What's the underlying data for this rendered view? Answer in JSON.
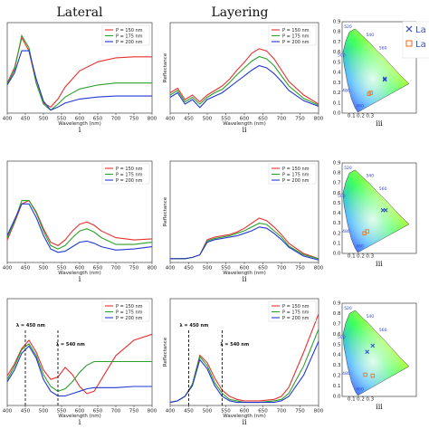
{
  "column_titles": {
    "lateral": "Lateral",
    "layering": "Layering"
  },
  "legend_labels": [
    "P = 150 nm",
    "P = 175 nm",
    "P = 200 nm"
  ],
  "series_colors": [
    "#e8312f",
    "#2ca02c",
    "#2238d0"
  ],
  "xlabel": "Wavelength (nm)",
  "ylabel_reflectance": "Reflectance",
  "xticks": [
    "400",
    "450",
    "500",
    "550",
    "600",
    "650",
    "700",
    "750",
    "800"
  ],
  "cie_legend": [
    "La",
    "La"
  ],
  "cie_wavelength_ticks": [
    "520",
    "540",
    "560",
    "500",
    "480",
    "460"
  ],
  "cie_axis_ticks": [
    "0.9",
    "0.8",
    "0.7",
    "0.6",
    "0.5",
    "0.4",
    "0.3",
    "0.2",
    "0.1",
    "0.0",
    "0.1",
    "0.2",
    "0.3"
  ],
  "rows": [
    {
      "left_label": "i",
      "mid_label": "ii",
      "right_label": "iii",
      "annotations": []
    },
    {
      "left_label": "i",
      "mid_label": "ii",
      "right_label": "iii",
      "annotations": []
    },
    {
      "left_label": "i",
      "mid_label": "ii",
      "right_label": "iii",
      "annotations": [
        {
          "text": "λ = 450 nm",
          "x": 450
        },
        {
          "text": "λ = 540 nm",
          "x": 540
        }
      ]
    }
  ],
  "chart_data": [
    {
      "type": "line",
      "panel": "row1-lateral",
      "x": [
        400,
        420,
        440,
        460,
        480,
        500,
        520,
        540,
        560,
        600,
        650,
        700,
        750,
        800
      ],
      "series": [
        {
          "name": "P = 150 nm",
          "values": [
            0.3,
            0.45,
            0.75,
            0.62,
            0.3,
            0.1,
            0.06,
            0.14,
            0.26,
            0.42,
            0.51,
            0.55,
            0.56,
            0.56
          ]
        },
        {
          "name": "P = 175 nm",
          "values": [
            0.29,
            0.43,
            0.77,
            0.65,
            0.3,
            0.09,
            0.03,
            0.09,
            0.16,
            0.24,
            0.28,
            0.3,
            0.3,
            0.3
          ]
        },
        {
          "name": "P = 200 nm",
          "values": [
            0.28,
            0.4,
            0.62,
            0.62,
            0.34,
            0.12,
            0.03,
            0.06,
            0.1,
            0.14,
            0.16,
            0.17,
            0.17,
            0.17
          ]
        }
      ],
      "xlim": [
        400,
        800
      ],
      "ylim": [
        0,
        0.9
      ]
    },
    {
      "type": "line",
      "panel": "row1-layering",
      "x": [
        400,
        420,
        440,
        460,
        480,
        500,
        520,
        540,
        560,
        580,
        600,
        620,
        640,
        660,
        680,
        700,
        720,
        760,
        800
      ],
      "series": [
        {
          "name": "P = 150 nm",
          "values": [
            0.18,
            0.22,
            0.12,
            0.16,
            0.1,
            0.16,
            0.2,
            0.24,
            0.3,
            0.38,
            0.45,
            0.53,
            0.57,
            0.55,
            0.48,
            0.38,
            0.28,
            0.16,
            0.08
          ]
        },
        {
          "name": "P = 175 nm",
          "values": [
            0.16,
            0.2,
            0.1,
            0.14,
            0.08,
            0.14,
            0.18,
            0.21,
            0.27,
            0.34,
            0.4,
            0.46,
            0.5,
            0.48,
            0.42,
            0.33,
            0.24,
            0.13,
            0.07
          ]
        },
        {
          "name": "P = 200 nm",
          "values": [
            0.14,
            0.18,
            0.08,
            0.12,
            0.05,
            0.12,
            0.15,
            0.18,
            0.23,
            0.28,
            0.33,
            0.38,
            0.42,
            0.4,
            0.35,
            0.28,
            0.2,
            0.11,
            0.06
          ]
        }
      ],
      "xlim": [
        400,
        800
      ],
      "ylim": [
        0,
        0.8
      ]
    },
    {
      "type": "line",
      "panel": "row2-lateral",
      "x": [
        400,
        420,
        440,
        460,
        480,
        500,
        520,
        540,
        560,
        580,
        600,
        620,
        640,
        660,
        700,
        750,
        800
      ],
      "series": [
        {
          "name": "P = 150 nm",
          "values": [
            0.2,
            0.35,
            0.52,
            0.55,
            0.45,
            0.3,
            0.18,
            0.15,
            0.2,
            0.28,
            0.34,
            0.36,
            0.33,
            0.28,
            0.22,
            0.2,
            0.21
          ]
        },
        {
          "name": "P = 175 nm",
          "values": [
            0.22,
            0.36,
            0.55,
            0.55,
            0.44,
            0.28,
            0.15,
            0.12,
            0.15,
            0.22,
            0.28,
            0.3,
            0.27,
            0.22,
            0.16,
            0.16,
            0.18
          ]
        },
        {
          "name": "P = 200 nm",
          "values": [
            0.24,
            0.38,
            0.52,
            0.52,
            0.4,
            0.24,
            0.12,
            0.09,
            0.1,
            0.14,
            0.18,
            0.19,
            0.17,
            0.14,
            0.11,
            0.12,
            0.14
          ]
        }
      ],
      "xlim": [
        400,
        800
      ],
      "ylim": [
        0,
        0.9
      ]
    },
    {
      "type": "line",
      "panel": "row2-layering",
      "x": [
        400,
        420,
        440,
        460,
        480,
        500,
        520,
        540,
        560,
        580,
        600,
        620,
        640,
        660,
        680,
        700,
        720,
        760,
        800
      ],
      "series": [
        {
          "name": "P = 150 nm",
          "values": [
            0.03,
            0.03,
            0.03,
            0.04,
            0.06,
            0.18,
            0.2,
            0.21,
            0.22,
            0.24,
            0.27,
            0.31,
            0.35,
            0.33,
            0.28,
            0.22,
            0.15,
            0.07,
            0.03
          ]
        },
        {
          "name": "P = 175 nm",
          "values": [
            0.03,
            0.03,
            0.03,
            0.04,
            0.06,
            0.17,
            0.19,
            0.2,
            0.21,
            0.23,
            0.25,
            0.28,
            0.31,
            0.3,
            0.25,
            0.2,
            0.13,
            0.06,
            0.03
          ]
        },
        {
          "name": "P = 200 nm",
          "values": [
            0.03,
            0.03,
            0.03,
            0.04,
            0.06,
            0.16,
            0.18,
            0.19,
            0.2,
            0.21,
            0.23,
            0.25,
            0.28,
            0.27,
            0.23,
            0.18,
            0.12,
            0.05,
            0.02
          ]
        }
      ],
      "xlim": [
        400,
        800
      ],
      "ylim": [
        0,
        0.8
      ]
    },
    {
      "type": "line",
      "panel": "row3-lateral",
      "x": [
        400,
        420,
        440,
        460,
        480,
        500,
        520,
        540,
        560,
        580,
        600,
        620,
        640,
        660,
        700,
        750,
        800
      ],
      "series": [
        {
          "name": "P = 150 nm",
          "values": [
            0.25,
            0.35,
            0.48,
            0.55,
            0.45,
            0.3,
            0.22,
            0.24,
            0.32,
            0.26,
            0.16,
            0.1,
            0.12,
            0.22,
            0.42,
            0.55,
            0.6
          ]
        },
        {
          "name": "P = 175 nm",
          "values": [
            0.22,
            0.33,
            0.47,
            0.52,
            0.42,
            0.26,
            0.16,
            0.12,
            0.14,
            0.2,
            0.28,
            0.34,
            0.37,
            0.37,
            0.37,
            0.37,
            0.37
          ]
        },
        {
          "name": "P = 200 nm",
          "values": [
            0.2,
            0.3,
            0.44,
            0.5,
            0.4,
            0.22,
            0.12,
            0.08,
            0.08,
            0.1,
            0.12,
            0.14,
            0.15,
            0.15,
            0.15,
            0.16,
            0.16
          ]
        }
      ],
      "xlim": [
        400,
        800
      ],
      "ylim": [
        0,
        0.9
      ]
    },
    {
      "type": "line",
      "panel": "row3-layering",
      "x": [
        400,
        420,
        440,
        460,
        480,
        500,
        520,
        540,
        560,
        580,
        600,
        640,
        680,
        700,
        720,
        760,
        800
      ],
      "series": [
        {
          "name": "P = 150 nm",
          "values": [
            0.02,
            0.03,
            0.06,
            0.14,
            0.33,
            0.28,
            0.18,
            0.1,
            0.06,
            0.04,
            0.03,
            0.03,
            0.04,
            0.06,
            0.12,
            0.35,
            0.6
          ]
        },
        {
          "name": "P = 175 nm",
          "values": [
            0.02,
            0.03,
            0.06,
            0.14,
            0.32,
            0.26,
            0.15,
            0.08,
            0.04,
            0.03,
            0.02,
            0.02,
            0.03,
            0.04,
            0.08,
            0.26,
            0.5
          ]
        },
        {
          "name": "P = 200 nm",
          "values": [
            0.02,
            0.03,
            0.06,
            0.13,
            0.3,
            0.24,
            0.13,
            0.06,
            0.03,
            0.02,
            0.02,
            0.02,
            0.02,
            0.03,
            0.06,
            0.2,
            0.42
          ]
        }
      ],
      "xlim": [
        400,
        800
      ],
      "ylim": [
        0,
        0.7
      ]
    }
  ]
}
